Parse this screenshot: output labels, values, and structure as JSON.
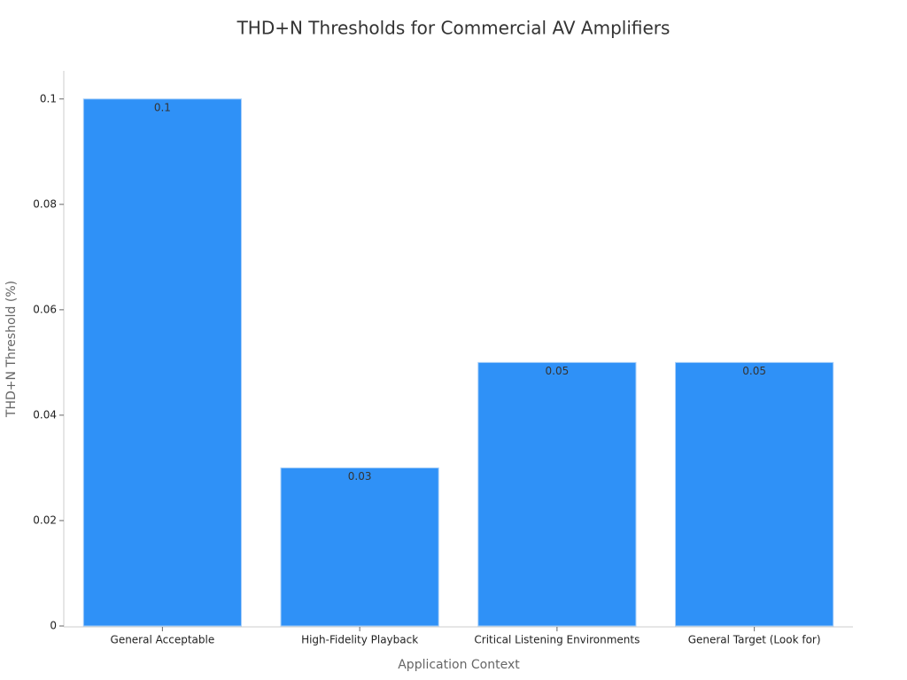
{
  "chart_data": {
    "type": "bar",
    "title": "THD+N Thresholds for Commercial AV Amplifiers",
    "x_label": "Application Context",
    "y_label": "THD+N Threshold (%)",
    "categories": [
      "General Acceptable",
      "High-Fidelity Playback",
      "Critical Listening Environments",
      "General Target (Look for)"
    ],
    "values": [
      0.1,
      0.03,
      0.05,
      0.05
    ],
    "color": "#2f91f7",
    "ylim": [
      0,
      0.105
    ],
    "yticks": [
      0,
      0.02,
      0.04,
      0.06,
      0.08,
      0.1
    ],
    "grid": false
  }
}
